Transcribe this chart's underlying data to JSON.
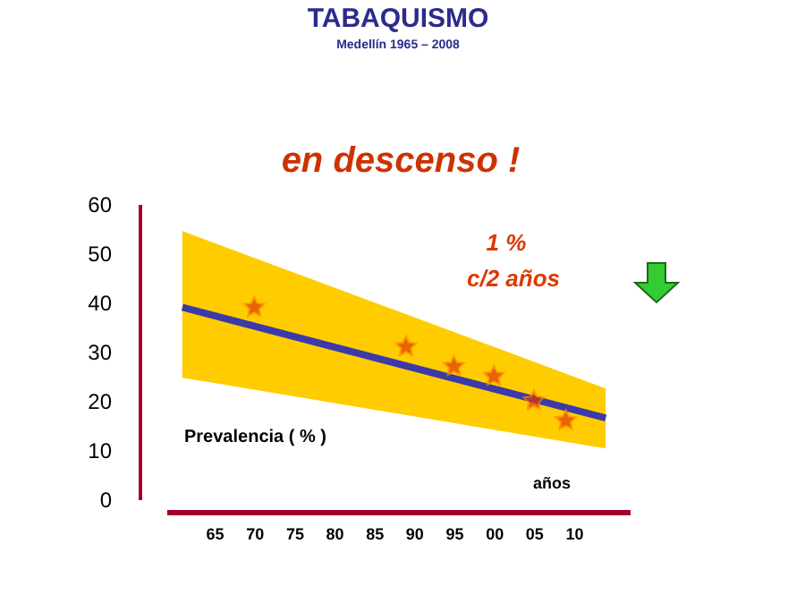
{
  "chart_data": {
    "type": "scatter",
    "title": "TABAQUISMO",
    "subtitle": "Medellín  1965 – 2008",
    "xlabel": "años",
    "ylabel": "Prevalencia ( % )",
    "annotations": [
      "en descenso !",
      "1 %",
      "c/2 años"
    ],
    "x": [
      1970,
      1989,
      1995,
      2000,
      2005,
      2009
    ],
    "series": [
      {
        "color": "#dd3a00",
        "marker": "star",
        "values": [
          39,
          31,
          27,
          25,
          20,
          16
        ]
      },
      {
        "type": "line",
        "color": "#3a3aa8",
        "x": [
          1961,
          2014
        ],
        "values": [
          39,
          16.5
        ],
        "lower": [
          24.7,
          10.3
        ],
        "upper": [
          54.5,
          22.5
        ]
      }
    ],
    "xlim": [
      1959,
      2017
    ],
    "ylim": [
      0,
      60
    ],
    "xticks": [
      {
        "value": 1965,
        "label": "65"
      },
      {
        "value": 1970,
        "label": "70"
      },
      {
        "value": 1975,
        "label": "75"
      },
      {
        "value": 1980,
        "label": "80"
      },
      {
        "value": 1985,
        "label": "85"
      },
      {
        "value": 1990,
        "label": "90"
      },
      {
        "value": 1995,
        "label": "95"
      },
      {
        "value": 2000,
        "label": "00"
      },
      {
        "value": 2005,
        "label": "05"
      },
      {
        "value": 2010,
        "label": "10"
      }
    ],
    "yticks": [
      0,
      10,
      20,
      30,
      40,
      50,
      60
    ],
    "grid": false
  }
}
